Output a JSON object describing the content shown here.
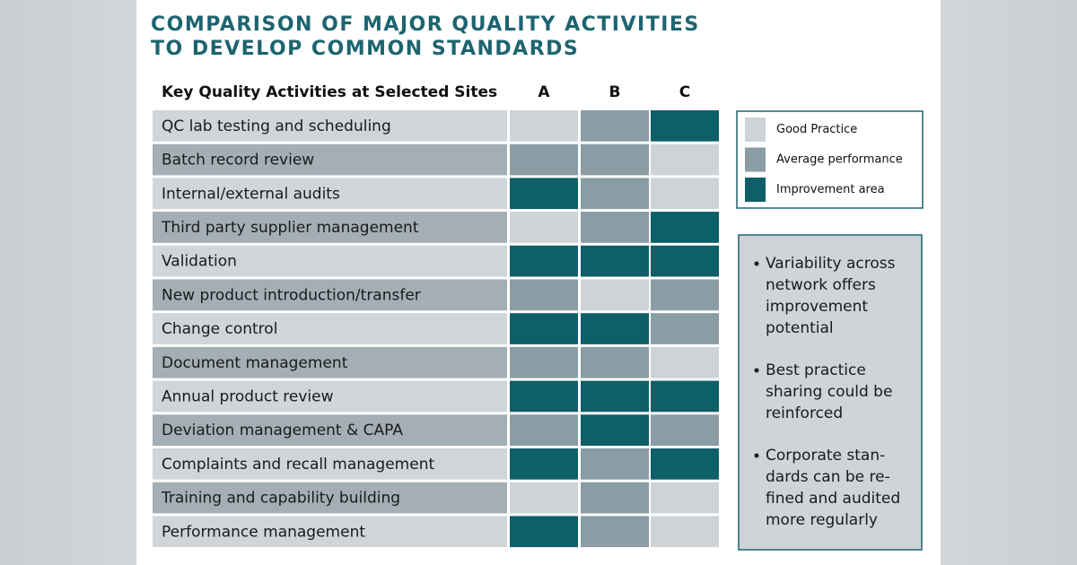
{
  "title": {
    "lines": [
      "COMPARISON OF MAJOR QUALITY ACTIVITIES",
      "TO DEVELOP COMMON STANDARDS"
    ]
  },
  "table": {
    "header": "Key Quality Activities at Selected Sites",
    "columns": [
      "A",
      "B",
      "C"
    ],
    "rows": [
      {
        "label": "QC lab testing and scheduling",
        "cells": [
          0,
          1,
          2
        ]
      },
      {
        "label": "Batch record review",
        "cells": [
          1,
          1,
          0
        ]
      },
      {
        "label": "Internal/external audits",
        "cells": [
          2,
          1,
          0
        ]
      },
      {
        "label": "Third party supplier management",
        "cells": [
          0,
          1,
          2
        ]
      },
      {
        "label": "Validation",
        "cells": [
          2,
          2,
          2
        ]
      },
      {
        "label": "New product introduction/transfer",
        "cells": [
          1,
          0,
          1
        ]
      },
      {
        "label": "Change control",
        "cells": [
          2,
          2,
          1
        ]
      },
      {
        "label": "Document management",
        "cells": [
          1,
          1,
          0
        ]
      },
      {
        "label": "Annual product review",
        "cells": [
          2,
          2,
          2
        ]
      },
      {
        "label": "Deviation management & CAPA",
        "cells": [
          1,
          2,
          1
        ]
      },
      {
        "label": "Complaints and recall management",
        "cells": [
          2,
          1,
          2
        ]
      },
      {
        "label": "Training and capability building",
        "cells": [
          0,
          1,
          0
        ]
      },
      {
        "label": "Performance management",
        "cells": [
          2,
          1,
          0
        ]
      }
    ]
  },
  "legend": [
    {
      "label": "Good Practice",
      "color": "#cdd3d7"
    },
    {
      "label": "Average performance",
      "color": "#8a9da4"
    },
    {
      "label": "Improvement area",
      "color": "#0e5f68"
    }
  ],
  "bullets": [
    [
      "Variability across",
      "network offers",
      "improvement",
      "potential"
    ],
    [
      "Best practice",
      "sharing could be",
      "reinforced"
    ],
    [
      "Corporate stan-",
      "dards can be re-",
      "fined and audited",
      "more regularly"
    ]
  ]
}
